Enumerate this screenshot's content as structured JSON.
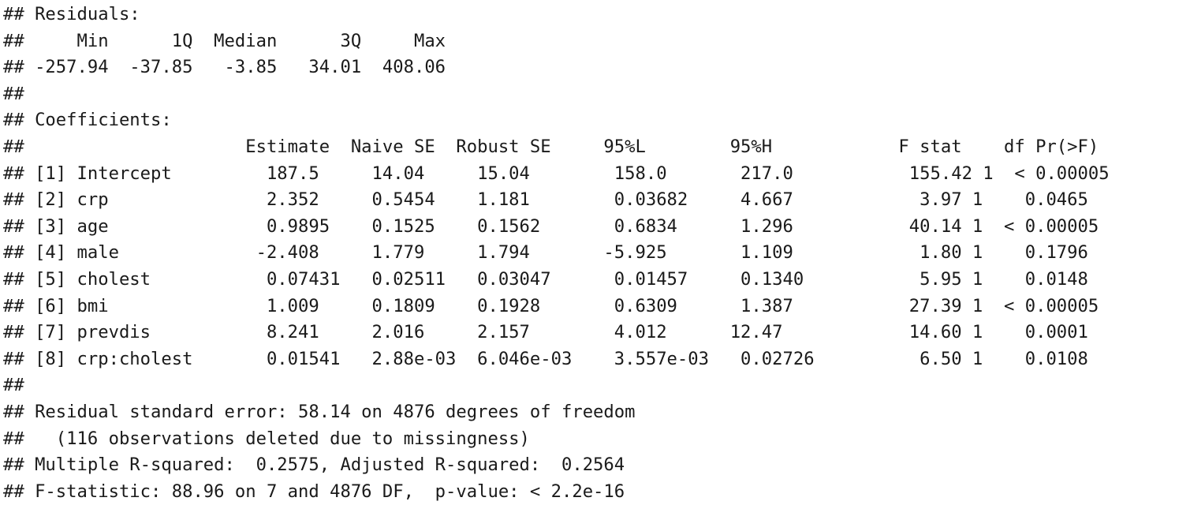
{
  "output_lines": [
    "## Residuals:",
    "##     Min      1Q  Median      3Q     Max",
    "## -257.94  -37.85   -3.85   34.01  408.06",
    "##",
    "## Coefficients:",
    "##                     Estimate  Naive SE  Robust SE     95%L        95%H            F stat    df Pr(>F)",
    "## [1] Intercept         187.5     14.04     15.04        158.0       217.0           155.42 1  < 0.00005",
    "## [2] crp               2.352     0.5454    1.181        0.03682     4.667            3.97 1    0.0465",
    "## [3] age               0.9895    0.1525    0.1562       0.6834      1.296           40.14 1  < 0.00005",
    "## [4] male             -2.408     1.779     1.794       -5.925       1.109            1.80 1    0.1796",
    "## [5] cholest           0.07431   0.02511   0.03047      0.01457     0.1340           5.95 1    0.0148",
    "## [6] bmi               1.009     0.1809    0.1928       0.6309      1.387           27.39 1  < 0.00005",
    "## [7] prevdis           8.241     2.016     2.157        4.012      12.47            14.60 1    0.0001",
    "## [8] crp:cholest       0.01541   2.88e-03  6.046e-03    3.557e-03   0.02726          6.50 1    0.0108",
    "##",
    "## Residual standard error: 58.14 on 4876 degrees of freedom",
    "##   (116 observations deleted due to missingness)",
    "## Multiple R-squared:  0.2575, Adjusted R-squared:  0.2564",
    "## F-statistic: 88.96 on 7 and 4876 DF,  p-value: < 2.2e-16"
  ]
}
